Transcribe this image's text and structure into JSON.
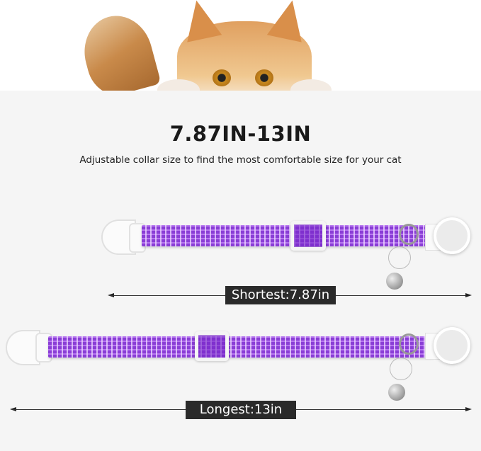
{
  "headline": "7.87IN-13IN",
  "subtitle": "Adjustable collar size to find the most comfortable size for your cat",
  "collars": [
    {
      "label": "Shortest:7.87in"
    },
    {
      "label": "Longest:13in"
    }
  ],
  "colors": {
    "strap": "#9b4fe0",
    "label_bg": "#2a2a2a",
    "panel": "#f5f5f5"
  }
}
